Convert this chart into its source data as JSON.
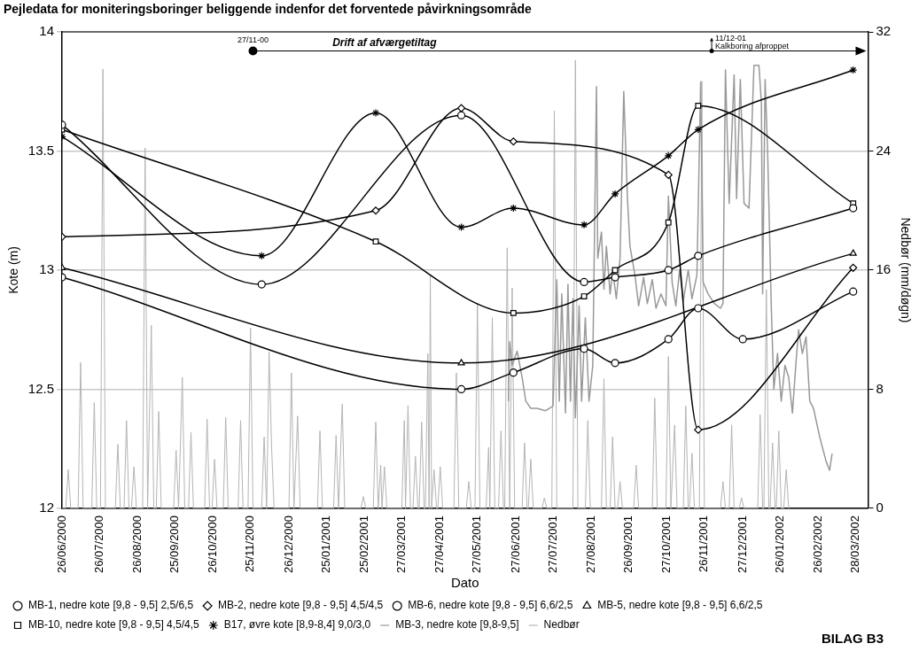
{
  "chart_data": {
    "type": "line",
    "title": "Pejledata for moniteringsboringer beliggende indenfor det forventede påvirkningsområde",
    "xlabel": "Dato",
    "ylabel": "Kote (m)",
    "y2label": "Nedbør (mm/døgn)",
    "xlim": [
      "2000-06-26",
      "2002-04-07"
    ],
    "xticks": [
      {
        "value": "2000-06-26",
        "label": "26/06/2000"
      },
      {
        "value": "2000-07-26",
        "label": "26/07/2000"
      },
      {
        "value": "2000-08-26",
        "label": "26/08/2000"
      },
      {
        "value": "2000-09-25",
        "label": "25/09/2000"
      },
      {
        "value": "2000-10-26",
        "label": "26/10/2000"
      },
      {
        "value": "2000-11-25",
        "label": "25/11/2000"
      },
      {
        "value": "2000-12-26",
        "label": "26/12/2000"
      },
      {
        "value": "2001-01-25",
        "label": "25/01/2001"
      },
      {
        "value": "2001-02-25",
        "label": "25/02/2001"
      },
      {
        "value": "2001-03-27",
        "label": "27/03/2001"
      },
      {
        "value": "2001-04-27",
        "label": "27/04/2001"
      },
      {
        "value": "2001-05-27",
        "label": "27/05/2001"
      },
      {
        "value": "2001-06-27",
        "label": "27/06/2001"
      },
      {
        "value": "2001-07-27",
        "label": "27/07/2001"
      },
      {
        "value": "2001-08-27",
        "label": "27/08/2001"
      },
      {
        "value": "2001-09-26",
        "label": "26/09/2001"
      },
      {
        "value": "2001-10-27",
        "label": "27/10/2001"
      },
      {
        "value": "2001-11-26",
        "label": "26/11/2001"
      },
      {
        "value": "2001-12-27",
        "label": "27/12/2001"
      },
      {
        "value": "2002-01-26",
        "label": "26/01/2002"
      },
      {
        "value": "2002-02-26",
        "label": "26/02/2002"
      },
      {
        "value": "2002-03-28",
        "label": "28/03/2002"
      }
    ],
    "ylim": [
      12,
      14
    ],
    "yticks": [
      12,
      12.5,
      13,
      13.5,
      14
    ],
    "y2lim": [
      0,
      32
    ],
    "y2ticks": [
      0,
      8,
      16,
      24,
      32
    ],
    "grid": "y",
    "legend": "bottom",
    "annotations": [
      {
        "text": "27/11-00",
        "x": "2000-11-27",
        "y": 13.92
      },
      "Drift af afværgetiltag",
      "11/12-01",
      "Kalkboring afproppet",
      "BILAG B3"
    ],
    "series": [
      {
        "name": "MB-1, nedre kote [9,8 - 9,5] 2,5/6,5",
        "color": "#000000",
        "marker": "circle",
        "x": [
          "2000-06-26",
          "2000-12-04",
          "2001-05-14",
          "2001-08-21",
          "2001-09-15",
          "2001-10-28",
          "2001-11-21",
          "2002-03-26"
        ],
        "values": [
          13.61,
          12.94,
          13.65,
          12.95,
          12.97,
          13.0,
          13.06,
          13.26
        ]
      },
      {
        "name": "MB-2, nedre kote [9,8 - 9,5] 4,5/4,5",
        "color": "#000000",
        "marker": "diamond",
        "x": [
          "2000-06-26",
          "2001-03-06",
          "2001-05-14",
          "2001-06-25",
          "2001-10-28",
          "2001-11-21",
          "2002-03-26"
        ],
        "values": [
          13.14,
          13.25,
          13.68,
          13.54,
          13.4,
          12.33,
          13.01
        ]
      },
      {
        "name": "MB-3, nedre kote [9,8-9,5]",
        "color": "#999999",
        "marker": "none",
        "x": [
          "2001-06-21",
          "2001-06-22",
          "2001-06-24",
          "2001-06-28",
          "2001-07-02",
          "2001-07-05",
          "2001-07-09",
          "2001-07-14",
          "2001-07-21",
          "2001-07-27",
          "2001-07-29",
          "2001-07-30",
          "2001-08-01",
          "2001-08-03",
          "2001-08-06",
          "2001-08-08",
          "2001-08-10",
          "2001-08-12",
          "2001-08-14",
          "2001-08-17",
          "2001-08-19",
          "2001-08-22",
          "2001-08-25",
          "2001-08-28",
          "2001-08-31",
          "2001-09-01",
          "2001-09-04",
          "2001-09-06",
          "2001-09-08",
          "2001-09-11",
          "2001-09-13",
          "2001-09-16",
          "2001-09-19",
          "2001-09-22",
          "2001-09-25",
          "2001-09-27",
          "2001-10-01",
          "2001-10-04",
          "2001-10-08",
          "2001-10-11",
          "2001-10-15",
          "2001-10-18",
          "2001-10-22",
          "2001-10-26",
          "2001-10-28",
          "2001-10-31",
          "2001-11-03",
          "2001-11-06",
          "2001-11-09",
          "2001-11-13",
          "2001-11-16",
          "2001-11-20",
          "2001-11-23",
          "2001-11-25",
          "2001-11-29",
          "2001-12-04",
          "2001-12-09",
          "2001-12-11",
          "2001-12-13",
          "2001-12-16",
          "2001-12-20",
          "2001-12-22",
          "2001-12-25",
          "2001-12-28",
          "2002-01-01",
          "2002-01-05",
          "2002-01-09",
          "2002-01-11",
          "2002-01-12",
          "2002-01-14",
          "2002-01-16",
          "2002-01-19",
          "2002-01-21",
          "2002-01-24",
          "2002-01-27",
          "2002-01-30",
          "2002-02-02",
          "2002-02-05",
          "2002-02-08",
          "2002-02-10",
          "2002-02-13",
          "2002-02-16",
          "2002-02-19",
          "2002-02-22",
          "2002-02-27",
          "2002-03-04",
          "2002-03-07",
          "2002-03-09"
        ],
        "values": [
          12.45,
          12.7,
          12.6,
          12.66,
          12.55,
          12.45,
          12.42,
          12.42,
          12.41,
          12.43,
          12.8,
          12.96,
          12.45,
          12.9,
          12.4,
          12.94,
          12.45,
          12.88,
          12.38,
          12.85,
          12.45,
          12.8,
          12.45,
          12.6,
          13.77,
          13.05,
          13.16,
          12.92,
          13.1,
          12.9,
          13.0,
          12.88,
          13.05,
          13.75,
          13.3,
          13.1,
          12.98,
          12.85,
          12.97,
          12.86,
          12.96,
          12.84,
          12.9,
          12.85,
          13.31,
          12.95,
          12.85,
          13.0,
          12.87,
          13.0,
          12.88,
          12.98,
          13.79,
          12.95,
          12.9,
          12.86,
          12.84,
          12.86,
          13.84,
          13.28,
          13.82,
          13.3,
          13.8,
          13.28,
          13.26,
          13.86,
          13.86,
          13.7,
          12.9,
          13.8,
          13.5,
          12.84,
          12.5,
          12.65,
          12.45,
          12.6,
          12.55,
          12.4,
          12.62,
          12.75,
          12.65,
          12.72,
          12.45,
          12.42,
          12.3,
          12.2,
          12.16,
          12.23
        ]
      },
      {
        "name": "MB-6, nedre kote [9,8 - 9,5] 6,6/2,5",
        "color": "#000000",
        "marker": "circle",
        "x": [
          "2000-06-26",
          "2001-05-14",
          "2001-06-25",
          "2001-08-21",
          "2001-09-15",
          "2001-10-28",
          "2001-11-21",
          "2001-12-27",
          "2002-03-26"
        ],
        "values": [
          12.97,
          12.5,
          12.57,
          12.67,
          12.61,
          12.71,
          12.84,
          12.71,
          12.91
        ]
      },
      {
        "name": "MB-5, nedre kote [9,8 - 9,5] 6,6/2,5",
        "color": "#000000",
        "marker": "triangle",
        "x": [
          "2000-06-26",
          "2001-05-14",
          "2002-03-26"
        ],
        "values": [
          13.01,
          12.61,
          13.07
        ]
      },
      {
        "name": "MB-10, nedre kote [9,8 - 9,5] 4,5/4,5",
        "color": "#000000",
        "marker": "square",
        "x": [
          "2000-06-26",
          "2001-03-06",
          "2001-06-25",
          "2001-08-21",
          "2001-09-15",
          "2001-10-28",
          "2001-11-21",
          "2002-03-26"
        ],
        "values": [
          13.59,
          13.12,
          12.82,
          12.89,
          13.0,
          13.2,
          13.69,
          13.28
        ]
      },
      {
        "name": "B17, øvre kote [8,9-8,4] 9,0/3,0",
        "color": "#000000",
        "marker": "cross",
        "x": [
          "2000-06-26",
          "2000-12-04",
          "2001-03-06",
          "2001-05-14",
          "2001-06-25",
          "2001-08-21",
          "2001-09-15",
          "2001-10-28",
          "2001-11-21",
          "2002-03-26"
        ],
        "values": [
          13.56,
          13.06,
          13.66,
          13.18,
          13.26,
          13.19,
          13.32,
          13.48,
          13.59,
          13.84
        ]
      },
      {
        "name": "Nedbør",
        "color": "#b4b4b4",
        "marker": "none",
        "axis": "y2",
        "x": [
          "2000-06-26",
          "2000-06-29",
          "2000-07-01",
          "2000-07-03",
          "2000-07-09",
          "2000-07-11",
          "2000-07-13",
          "2000-07-20",
          "2000-07-22",
          "2000-07-24",
          "2000-07-27",
          "2000-07-29",
          "2000-07-31",
          "2000-08-08",
          "2000-08-10",
          "2000-08-12",
          "2000-08-15",
          "2000-08-17",
          "2000-08-19",
          "2000-08-21",
          "2000-08-23",
          "2000-08-25",
          "2000-08-30",
          "2000-09-01",
          "2000-09-03",
          "2000-09-06",
          "2000-09-08",
          "2000-09-10",
          "2000-09-12",
          "2000-09-14",
          "2000-09-24",
          "2000-09-26",
          "2000-09-28",
          "2000-10-01",
          "2000-10-03",
          "2000-10-06",
          "2000-10-08",
          "2000-10-10",
          "2000-10-19",
          "2000-10-21",
          "2000-10-23",
          "2000-10-25",
          "2000-10-27",
          "2000-10-29",
          "2000-11-03",
          "2000-11-05",
          "2000-11-07",
          "2000-11-15",
          "2000-11-17",
          "2000-11-19",
          "2000-11-23",
          "2000-11-25",
          "2000-11-27",
          "2000-12-04",
          "2000-12-06",
          "2000-12-08",
          "2000-12-10",
          "2000-12-12",
          "2000-12-14",
          "2000-12-26",
          "2000-12-28",
          "2000-12-30",
          "2001-01-02",
          "2001-01-04",
          "2001-01-18",
          "2001-01-20",
          "2001-01-22",
          "2001-01-31",
          "2001-02-02",
          "2001-02-04",
          "2001-02-07",
          "2001-02-09",
          "2001-02-22",
          "2001-02-24",
          "2001-02-26",
          "2001-03-04",
          "2001-03-06",
          "2001-03-08",
          "2001-03-10",
          "2001-03-11",
          "2001-03-13",
          "2001-03-15",
          "2001-03-27",
          "2001-03-29",
          "2001-03-30",
          "2001-04-01",
          "2001-04-03",
          "2001-04-05",
          "2001-04-07",
          "2001-04-09",
          "2001-04-10",
          "2001-04-12",
          "2001-04-14",
          "2001-04-15",
          "2001-04-17",
          "2001-04-18",
          "2001-04-19",
          "2001-04-20",
          "2001-04-22",
          "2001-04-24",
          "2001-04-25",
          "2001-04-27",
          "2001-04-29",
          "2001-05-08",
          "2001-05-10",
          "2001-05-12",
          "2001-05-18",
          "2001-05-20",
          "2001-05-22",
          "2001-05-25",
          "2001-05-27",
          "2001-05-29",
          "2001-06-03",
          "2001-06-05",
          "2001-06-06",
          "2001-06-08",
          "2001-06-10",
          "2001-06-13",
          "2001-06-15",
          "2001-06-17",
          "2001-06-18",
          "2001-06-20",
          "2001-06-22",
          "2001-06-24",
          "2001-06-26",
          "2001-07-02",
          "2001-07-04",
          "2001-07-06",
          "2001-07-07",
          "2001-07-09",
          "2001-07-11",
          "2001-07-18",
          "2001-07-20",
          "2001-07-22",
          "2001-07-26",
          "2001-07-28",
          "2001-07-30",
          "2001-08-12",
          "2001-08-14",
          "2001-08-16",
          "2001-08-22",
          "2001-08-24",
          "2001-08-26",
          "2001-09-04",
          "2001-09-06",
          "2001-09-08",
          "2001-09-11",
          "2001-09-13",
          "2001-09-15",
          "2001-09-17",
          "2001-09-19",
          "2001-09-21",
          "2001-09-30",
          "2001-10-02",
          "2001-10-04",
          "2001-10-15",
          "2001-10-17",
          "2001-10-19",
          "2001-10-26",
          "2001-10-28",
          "2001-10-30",
          "2001-11-02",
          "2001-11-04",
          "2001-11-09",
          "2001-11-11",
          "2001-11-13",
          "2001-11-14",
          "2001-11-16",
          "2001-11-18",
          "2001-11-22",
          "2001-11-24",
          "2001-11-26",
          "2001-12-09",
          "2001-12-11",
          "2001-12-13",
          "2001-12-16",
          "2001-12-18",
          "2001-12-20",
          "2001-12-24",
          "2001-12-26",
          "2001-12-28",
          "2002-01-08",
          "2002-01-10",
          "2002-01-12",
          "2002-01-13",
          "2002-01-15",
          "2002-01-17",
          "2002-01-18",
          "2002-01-20",
          "2002-01-22",
          "2002-01-23",
          "2002-01-25",
          "2002-01-27",
          "2002-01-29",
          "2002-01-31",
          "2002-02-02"
        ],
        "values": [
          0,
          0,
          2.6,
          0,
          0,
          9.8,
          0,
          0,
          7.1,
          0,
          0,
          29.5,
          0,
          0,
          4.3,
          0,
          0,
          5.9,
          0,
          0,
          2.8,
          0,
          0,
          24.2,
          0,
          12.3,
          0,
          0,
          6.5,
          0,
          0,
          3.9,
          0,
          8.8,
          0,
          0,
          5.1,
          0,
          0,
          6.0,
          0,
          0,
          3.3,
          0,
          0,
          6.1,
          0,
          0,
          5.9,
          0,
          0,
          12.1,
          0,
          0,
          4.8,
          0,
          10.5,
          4.1,
          0,
          0,
          9.1,
          0,
          6.2,
          0,
          0,
          5.2,
          0,
          0,
          4.9,
          0,
          7.0,
          0,
          0,
          0.8,
          0,
          0,
          5.8,
          0,
          2.9,
          0,
          2.8,
          0,
          0,
          5.9,
          0,
          6.9,
          0,
          0,
          3.5,
          0,
          0,
          5.8,
          0,
          0,
          10.4,
          0,
          15.7,
          0,
          2.6,
          0,
          0,
          2.8,
          0,
          0,
          9.1,
          0,
          0,
          1.8,
          0,
          0,
          13.8,
          0,
          0,
          4.1,
          0,
          12.8,
          0,
          0,
          5.2,
          0,
          0,
          17.5,
          0,
          14.8,
          0,
          0,
          4.4,
          0,
          0,
          3.3,
          0,
          0,
          0.7,
          0,
          0,
          26.7,
          0,
          0,
          30.1,
          0,
          0,
          5.9,
          0,
          0,
          8.7,
          0,
          0,
          4.8,
          0,
          0,
          1.8,
          0,
          0,
          2.9,
          0,
          0,
          7.4,
          0,
          0,
          10.2,
          0,
          5.6,
          0,
          0,
          6.9,
          0,
          0,
          3.7,
          0,
          0,
          28.7,
          0,
          0,
          1.8,
          0,
          0,
          5.6,
          0,
          0,
          0.7,
          0,
          0,
          6.3,
          0,
          0,
          14.7,
          0,
          0,
          4.4,
          0,
          0,
          5.2,
          0,
          0,
          2.6,
          0
        ]
      }
    ]
  }
}
